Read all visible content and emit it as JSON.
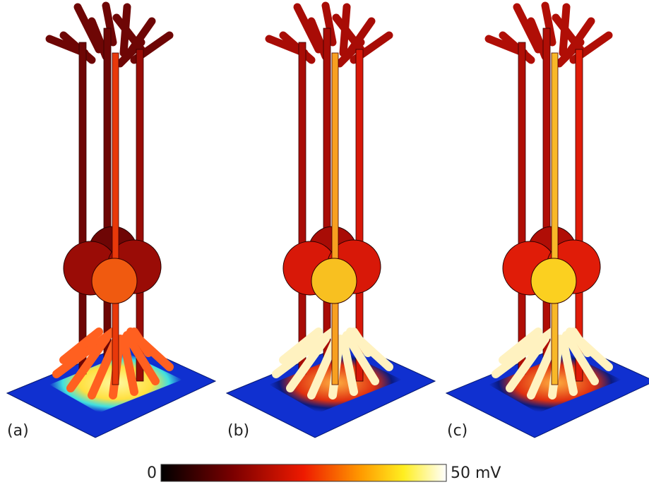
{
  "panels": [
    {
      "label": "(a)"
    },
    {
      "label": "(b)"
    },
    {
      "label": "(c)"
    }
  ],
  "colorbar": {
    "min_label": "0",
    "max_label": "50 mV"
  }
}
